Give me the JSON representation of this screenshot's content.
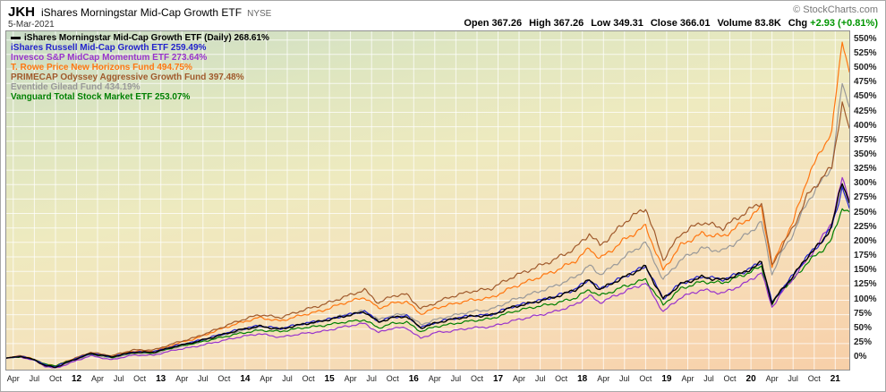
{
  "header": {
    "symbol": "JKH",
    "title": "iShares Morningstar Mid-Cap Growth ETF",
    "exchange": "NYSE",
    "date": "5-Mar-2021",
    "copyright": "© StockCharts.com",
    "quote": [
      {
        "label": "Open",
        "value": "367.26",
        "color": "#000000"
      },
      {
        "label": "High",
        "value": "367.26",
        "color": "#000000"
      },
      {
        "label": "Low",
        "value": "349.31",
        "color": "#000000"
      },
      {
        "label": "Close",
        "value": "366.01",
        "color": "#000000"
      },
      {
        "label": "Volume",
        "value": "83.8K",
        "color": "#000000"
      },
      {
        "label": "Chg",
        "value": "+2.93 (+0.81%)",
        "color": "#009600"
      }
    ]
  },
  "legend": {
    "items": [
      {
        "text": "iShares Morningstar Mid-Cap Growth ETF (Daily) 268.61%",
        "color": "#000000",
        "dash": true
      },
      {
        "text": "iShares Russell Mid-Cap Growth ETF 259.49%",
        "color": "#2222cc",
        "dash": false
      },
      {
        "text": "Invesco S&P MidCap Momentum ETF 273.64%",
        "color": "#9933cc",
        "dash": false
      },
      {
        "text": "T. Rowe Price New Horizons Fund 494.75%",
        "color": "#ff7711",
        "dash": false
      },
      {
        "text": "PRIMECAP Odyssey Aggressive Growth Fund 397.48%",
        "color": "#a05a2c",
        "dash": false
      },
      {
        "text": "Eventide Gilead Fund 434.19%",
        "color": "#999999",
        "dash": false
      },
      {
        "text": "Vanguard Total Stock Market ETF 253.07%",
        "color": "#008000",
        "dash": false
      }
    ]
  },
  "chart_data": {
    "type": "line",
    "title": "10-year cumulative percent performance, Mar-2011 to 5-Mar-2021",
    "x_unit": "months since Mar-2011",
    "x_range": [
      0,
      120
    ],
    "ylim": [
      -20,
      565
    ],
    "grid": true,
    "grid_color": "rgba(255,255,255,0.75)",
    "legend_position": "top-left",
    "y_tick_suffix": "%",
    "y_ticks": [
      550,
      525,
      500,
      475,
      450,
      425,
      400,
      375,
      350,
      325,
      300,
      275,
      250,
      225,
      200,
      175,
      150,
      125,
      100,
      75,
      50,
      25,
      0
    ],
    "x_ticks": [
      {
        "m": 1,
        "label": "Apr",
        "bold": false
      },
      {
        "m": 4,
        "label": "Jul",
        "bold": false
      },
      {
        "m": 7,
        "label": "Oct",
        "bold": false
      },
      {
        "m": 10,
        "label": "12",
        "bold": true
      },
      {
        "m": 13,
        "label": "Apr",
        "bold": false
      },
      {
        "m": 16,
        "label": "Jul",
        "bold": false
      },
      {
        "m": 19,
        "label": "Oct",
        "bold": false
      },
      {
        "m": 22,
        "label": "13",
        "bold": true
      },
      {
        "m": 25,
        "label": "Apr",
        "bold": false
      },
      {
        "m": 28,
        "label": "Jul",
        "bold": false
      },
      {
        "m": 31,
        "label": "Oct",
        "bold": false
      },
      {
        "m": 34,
        "label": "14",
        "bold": true
      },
      {
        "m": 37,
        "label": "Apr",
        "bold": false
      },
      {
        "m": 40,
        "label": "Jul",
        "bold": false
      },
      {
        "m": 43,
        "label": "Oct",
        "bold": false
      },
      {
        "m": 46,
        "label": "15",
        "bold": true
      },
      {
        "m": 49,
        "label": "Apr",
        "bold": false
      },
      {
        "m": 52,
        "label": "Jul",
        "bold": false
      },
      {
        "m": 55,
        "label": "Oct",
        "bold": false
      },
      {
        "m": 58,
        "label": "16",
        "bold": true
      },
      {
        "m": 61,
        "label": "Apr",
        "bold": false
      },
      {
        "m": 64,
        "label": "Jul",
        "bold": false
      },
      {
        "m": 67,
        "label": "Oct",
        "bold": false
      },
      {
        "m": 70,
        "label": "17",
        "bold": true
      },
      {
        "m": 73,
        "label": "Apr",
        "bold": false
      },
      {
        "m": 76,
        "label": "Jul",
        "bold": false
      },
      {
        "m": 79,
        "label": "Oct",
        "bold": false
      },
      {
        "m": 82,
        "label": "18",
        "bold": true
      },
      {
        "m": 85,
        "label": "Apr",
        "bold": false
      },
      {
        "m": 88,
        "label": "Jul",
        "bold": false
      },
      {
        "m": 91,
        "label": "Oct",
        "bold": false
      },
      {
        "m": 94,
        "label": "19",
        "bold": true
      },
      {
        "m": 97,
        "label": "Apr",
        "bold": false
      },
      {
        "m": 100,
        "label": "Jul",
        "bold": false
      },
      {
        "m": 103,
        "label": "Oct",
        "bold": false
      },
      {
        "m": 106,
        "label": "20",
        "bold": true
      },
      {
        "m": 109,
        "label": "Apr",
        "bold": false
      },
      {
        "m": 112,
        "label": "Jul",
        "bold": false
      },
      {
        "m": 115,
        "label": "Oct",
        "bold": false
      },
      {
        "m": 118,
        "label": "21",
        "bold": true
      }
    ],
    "x": [
      0,
      2,
      4,
      5.5,
      7,
      9,
      12,
      15,
      18,
      21,
      24,
      27,
      30,
      33,
      36,
      39,
      42,
      45,
      48,
      51,
      53,
      55,
      57,
      59,
      61,
      63,
      66,
      69,
      72,
      75,
      78,
      81,
      83,
      84.5,
      86,
      88,
      91,
      93.5,
      96,
      99,
      102,
      105,
      107.5,
      109,
      110.5,
      112,
      114,
      116,
      117.5,
      119,
      120
    ],
    "draw_order": [
      5,
      3,
      4,
      6,
      2,
      1,
      0
    ],
    "series": [
      {
        "id": "morningstar",
        "name": "iShares Morningstar Mid-Cap Growth ETF (Daily)",
        "color": "#000000",
        "final_pct": 268.61,
        "values": [
          0,
          3,
          -3,
          -13,
          -16,
          -6,
          8,
          2,
          10,
          10,
          20,
          28,
          38,
          48,
          55,
          50,
          58,
          64,
          72,
          80,
          62,
          70,
          72,
          52,
          60,
          66,
          72,
          74,
          88,
          96,
          105,
          118,
          135,
          118,
          128,
          140,
          158,
          102,
          128,
          140,
          135,
          148,
          165,
          95,
          120,
          142,
          175,
          200,
          228,
          305,
          268.61
        ]
      },
      {
        "id": "russell",
        "name": "iShares Russell Mid-Cap Growth ETF",
        "color": "#2222cc",
        "final_pct": 259.49,
        "values": [
          0,
          3,
          -3,
          -12,
          -15,
          -5,
          8,
          2,
          10,
          11,
          21,
          29,
          39,
          49,
          56,
          51,
          59,
          65,
          73,
          81,
          63,
          71,
          73,
          53,
          61,
          67,
          73,
          75,
          89,
          97,
          106,
          119,
          136,
          119,
          129,
          141,
          159,
          103,
          129,
          141,
          136,
          149,
          166,
          96,
          121,
          143,
          176,
          200,
          226,
          295,
          259.49
        ]
      },
      {
        "id": "invesco",
        "name": "Invesco S&P MidCap Momentum ETF",
        "color": "#9933cc",
        "final_pct": 273.64,
        "values": [
          0,
          2,
          -4,
          -14,
          -18,
          -9,
          4,
          -3,
          5,
          5,
          14,
          20,
          28,
          36,
          42,
          36,
          42,
          46,
          54,
          60,
          44,
          52,
          52,
          34,
          44,
          46,
          52,
          54,
          64,
          72,
          80,
          92,
          108,
          96,
          104,
          115,
          130,
          80,
          105,
          118,
          112,
          128,
          148,
          88,
          115,
          138,
          170,
          205,
          235,
          310,
          273.64
        ]
      },
      {
        "id": "trowe",
        "name": "T. Rowe Price New Horizons Fund",
        "color": "#ff7711",
        "final_pct": 494.75,
        "values": [
          0,
          4,
          -2,
          -11,
          -13,
          -4,
          8,
          3,
          12,
          12,
          24,
          34,
          48,
          60,
          70,
          64,
          74,
          82,
          95,
          105,
          86,
          95,
          98,
          76,
          86,
          92,
          100,
          104,
          122,
          136,
          150,
          168,
          190,
          172,
          185,
          205,
          228,
          152,
          195,
          215,
          210,
          235,
          260,
          158,
          200,
          235,
          310,
          360,
          390,
          550,
          494.75
        ]
      },
      {
        "id": "primecap",
        "name": "PRIMECAP Odyssey Aggressive Growth Fund",
        "color": "#a05a2c",
        "final_pct": 397.48,
        "values": [
          0,
          4,
          -2,
          -12,
          -14,
          -4,
          10,
          4,
          14,
          14,
          26,
          36,
          50,
          64,
          75,
          70,
          82,
          92,
          105,
          118,
          95,
          108,
          110,
          85,
          95,
          105,
          115,
          120,
          140,
          155,
          170,
          190,
          215,
          195,
          210,
          235,
          260,
          170,
          215,
          235,
          225,
          250,
          270,
          160,
          195,
          225,
          280,
          310,
          330,
          440,
          397.48
        ]
      },
      {
        "id": "eventide",
        "name": "Eventide Gilead Fund",
        "color": "#999999",
        "final_pct": 434.19,
        "values": [
          0,
          3,
          -3,
          -13,
          -16,
          -7,
          6,
          0,
          8,
          8,
          18,
          26,
          36,
          46,
          54,
          50,
          58,
          64,
          74,
          82,
          66,
          74,
          76,
          58,
          66,
          72,
          80,
          84,
          100,
          112,
          124,
          140,
          160,
          145,
          155,
          175,
          200,
          135,
          170,
          190,
          185,
          210,
          235,
          145,
          185,
          215,
          270,
          305,
          330,
          475,
          434.19
        ]
      },
      {
        "id": "vanguard",
        "name": "Vanguard Total Stock Market ETF",
        "color": "#008000",
        "final_pct": 253.07,
        "values": [
          0,
          2,
          -2,
          -11,
          -13,
          -5,
          7,
          1,
          9,
          9,
          19,
          26,
          34,
          42,
          48,
          46,
          52,
          56,
          62,
          66,
          52,
          60,
          62,
          46,
          54,
          58,
          64,
          68,
          80,
          88,
          94,
          104,
          118,
          108,
          114,
          124,
          136,
          92,
          120,
          132,
          130,
          144,
          158,
          92,
          120,
          135,
          165,
          185,
          205,
          260,
          253.07
        ]
      }
    ]
  }
}
